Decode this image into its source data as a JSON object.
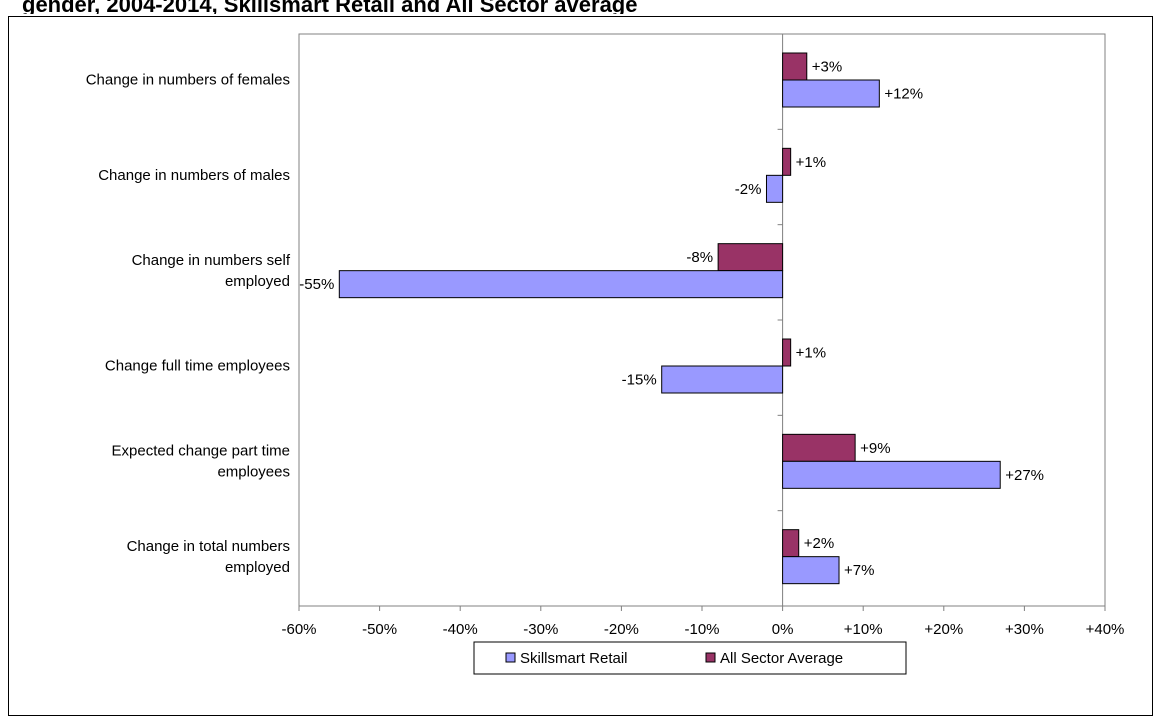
{
  "header": {
    "title": "gender, 2004-2014, Skillsmart Retail and All Sector average"
  },
  "colors": {
    "skillsmart": "#9999ff",
    "all_sector": "#993366",
    "axis": "#808080"
  },
  "chart_data": {
    "type": "bar",
    "orientation": "horizontal",
    "categories": [
      [
        "Change in numbers of females"
      ],
      [
        "Change in numbers of males"
      ],
      [
        "Change in numbers self",
        "employed"
      ],
      [
        "Change full time employees"
      ],
      [
        "Expected change part time",
        "employees"
      ],
      [
        "Change in total numbers",
        "employed"
      ]
    ],
    "series": [
      {
        "name": "Skillsmart Retail",
        "values": [
          12,
          -2,
          -55,
          -15,
          27,
          7
        ],
        "labels": [
          "+12%",
          "-2%",
          "-55%",
          "-15%",
          "+27%",
          "+7%"
        ]
      },
      {
        "name": "All Sector Average",
        "values": [
          3,
          1,
          -8,
          1,
          9,
          2
        ],
        "labels": [
          "+3%",
          "+1%",
          "-8%",
          "+1%",
          "+9%",
          "+2%"
        ]
      }
    ],
    "xlim": [
      -60,
      40
    ],
    "xticks": [
      "-60%",
      "-50%",
      "-40%",
      "-30%",
      "-20%",
      "-10%",
      "0%",
      "+10%",
      "+20%",
      "+30%",
      "+40%"
    ],
    "grid": false,
    "legend_position": "bottom"
  }
}
